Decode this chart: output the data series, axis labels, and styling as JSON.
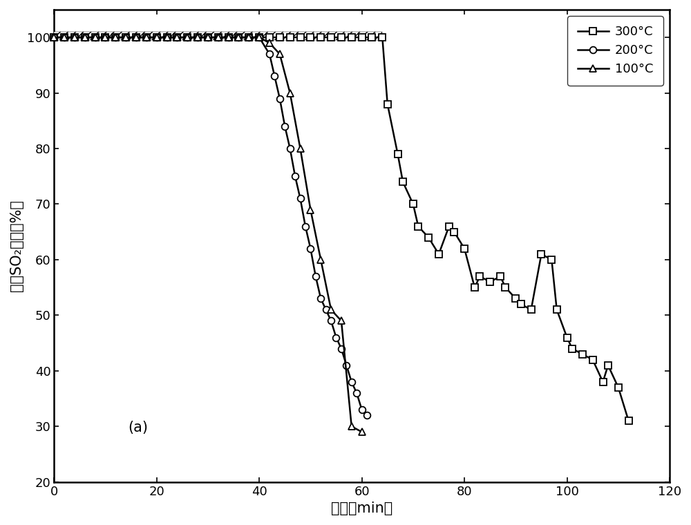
{
  "xlabel": "时间（min）",
  "ylabel": "脱除SO₂效率（%）",
  "xlim": [
    0,
    120
  ],
  "ylim": [
    20,
    105
  ],
  "yticks": [
    20,
    30,
    40,
    50,
    60,
    70,
    80,
    90,
    100
  ],
  "xticks": [
    0,
    20,
    40,
    60,
    80,
    100,
    120
  ],
  "annotation": "(a)",
  "series_300_x": [
    0,
    2,
    4,
    6,
    8,
    10,
    12,
    14,
    16,
    18,
    20,
    22,
    24,
    26,
    28,
    30,
    32,
    34,
    36,
    38,
    40,
    42,
    44,
    46,
    48,
    50,
    52,
    54,
    56,
    58,
    60,
    62,
    64,
    65,
    67,
    68,
    70,
    71,
    73,
    75,
    77,
    78,
    80,
    82,
    83,
    85,
    87,
    88,
    90,
    91,
    93,
    95,
    97,
    98,
    100,
    101,
    103,
    105,
    107,
    108,
    110,
    112
  ],
  "series_300_y": [
    100,
    100,
    100,
    100,
    100,
    100,
    100,
    100,
    100,
    100,
    100,
    100,
    100,
    100,
    100,
    100,
    100,
    100,
    100,
    100,
    100,
    100,
    100,
    100,
    100,
    100,
    100,
    100,
    100,
    100,
    100,
    100,
    100,
    88,
    79,
    74,
    70,
    66,
    64,
    61,
    66,
    65,
    62,
    55,
    57,
    56,
    57,
    55,
    53,
    52,
    51,
    61,
    60,
    51,
    46,
    44,
    43,
    42,
    38,
    41,
    37,
    31
  ],
  "series_200_x": [
    0,
    2,
    4,
    6,
    8,
    10,
    12,
    14,
    16,
    18,
    20,
    22,
    24,
    26,
    28,
    30,
    32,
    34,
    36,
    38,
    40,
    42,
    43,
    44,
    45,
    46,
    47,
    48,
    49,
    50,
    51,
    52,
    53,
    54,
    55,
    56,
    57,
    58,
    59,
    60,
    61
  ],
  "series_200_y": [
    100,
    100,
    100,
    100,
    100,
    100,
    100,
    100,
    100,
    100,
    100,
    100,
    100,
    100,
    100,
    100,
    100,
    100,
    100,
    100,
    100,
    97,
    93,
    89,
    84,
    80,
    75,
    71,
    66,
    62,
    57,
    53,
    51,
    49,
    46,
    44,
    41,
    38,
    36,
    33,
    32
  ],
  "series_100_x": [
    0,
    2,
    4,
    6,
    8,
    10,
    12,
    14,
    16,
    18,
    20,
    22,
    24,
    26,
    28,
    30,
    32,
    34,
    36,
    38,
    40,
    42,
    44,
    46,
    48,
    50,
    52,
    54,
    56,
    58,
    60
  ],
  "series_100_y": [
    100,
    100,
    100,
    100,
    100,
    100,
    100,
    100,
    100,
    100,
    100,
    100,
    100,
    100,
    100,
    100,
    100,
    100,
    100,
    100,
    100,
    99,
    97,
    90,
    80,
    69,
    60,
    51,
    49,
    30,
    29
  ],
  "legend_300": "300°C",
  "legend_200": "200°C",
  "legend_100": "100°C",
  "background_color": "#ffffff",
  "fontsize_label": 15,
  "fontsize_tick": 13,
  "fontsize_legend": 13,
  "fontsize_annotation": 15
}
